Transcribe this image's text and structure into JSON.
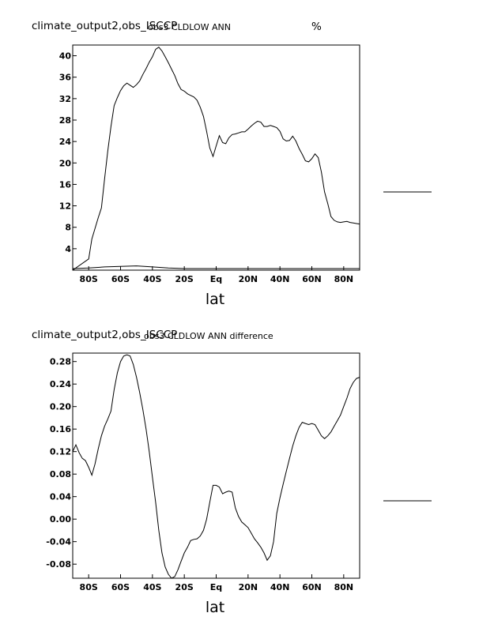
{
  "chart_data": [
    {
      "type": "line",
      "source_label": "climate_output2,obs_ISCCP",
      "title": "obs3 CLDLOW ANN",
      "units": "%",
      "xlabel": "lat",
      "ylabel": "",
      "xlim": [
        -90,
        90
      ],
      "ylim": [
        0,
        42
      ],
      "x_ticks": [
        {
          "value": -80,
          "label": "80S"
        },
        {
          "value": -60,
          "label": "60S"
        },
        {
          "value": -40,
          "label": "40S"
        },
        {
          "value": -20,
          "label": "20S"
        },
        {
          "value": 0,
          "label": "Eq"
        },
        {
          "value": 20,
          "label": "20N"
        },
        {
          "value": 40,
          "label": "40N"
        },
        {
          "value": 60,
          "label": "60N"
        },
        {
          "value": 80,
          "label": "80N"
        }
      ],
      "y_ticks": [
        {
          "value": 4,
          "label": "4"
        },
        {
          "value": 8,
          "label": "8"
        },
        {
          "value": 12,
          "label": "12"
        },
        {
          "value": 16,
          "label": "16"
        },
        {
          "value": 20,
          "label": "20"
        },
        {
          "value": 24,
          "label": "24"
        },
        {
          "value": 28,
          "label": "28"
        },
        {
          "value": 32,
          "label": "32"
        },
        {
          "value": 36,
          "label": "36"
        },
        {
          "value": 40,
          "label": "40"
        }
      ],
      "grid": false,
      "legend": "none",
      "series": [
        {
          "x": [
            -90,
            -80,
            -78,
            -74,
            -72,
            -70,
            -68,
            -66,
            -64,
            -62,
            -60,
            -58,
            -56,
            -54,
            -52,
            -50,
            -48,
            -46,
            -44,
            -42,
            -40,
            -38,
            -36,
            -34,
            -32,
            -30,
            -28,
            -26,
            -24,
            -22,
            -20,
            -18,
            -16,
            -14,
            -12,
            -10,
            -8,
            -6,
            -4,
            -2,
            0,
            2,
            4,
            6,
            8,
            10,
            12,
            14,
            16,
            18,
            20,
            22,
            24,
            26,
            28,
            30,
            32,
            34,
            36,
            38,
            40,
            42,
            44,
            46,
            48,
            50,
            52,
            54,
            56,
            58,
            60,
            62,
            64,
            66,
            68,
            70,
            72,
            74,
            76,
            78,
            80,
            82,
            84,
            86,
            88,
            90
          ],
          "y": [
            0,
            2.1,
            5.8,
            9.8,
            11.6,
            17,
            22.3,
            26.8,
            30.7,
            32.2,
            33.5,
            34.4,
            34.9,
            34.5,
            34.1,
            34.6,
            35.3,
            36.5,
            37.6,
            38.8,
            39.8,
            41.2,
            41.6,
            40.9,
            39.8,
            38.7,
            37.5,
            36.3,
            34.8,
            33.7,
            33.4,
            32.9,
            32.6,
            32.3,
            31.7,
            30.4,
            28.7,
            25.9,
            22.8,
            21.2,
            23.2,
            25.1,
            23.8,
            23.6,
            24.7,
            25.3,
            25.4,
            25.6,
            25.8,
            25.8,
            26.3,
            26.9,
            27.4,
            27.8,
            27.6,
            26.8,
            26.8,
            27.0,
            26.8,
            26.6,
            25.9,
            24.5,
            24.1,
            24.2,
            25.0,
            24.1,
            22.7,
            21.6,
            20.4,
            20.2,
            20.8,
            21.7,
            21.0,
            18.3,
            14.6,
            12.4,
            10.0,
            9.3,
            9.0,
            8.9,
            9.0,
            9.1,
            8.9,
            8.8,
            8.7,
            8.6
          ]
        },
        {
          "x": [
            -90,
            -80,
            -70,
            -60,
            -50,
            -40,
            -30,
            -20,
            -10,
            0,
            10,
            20,
            30,
            40,
            50,
            60,
            70,
            80,
            90
          ],
          "y": [
            0.3,
            0.4,
            0.6,
            0.7,
            0.8,
            0.6,
            0.4,
            0.3,
            0.3,
            0.3,
            0.3,
            0.3,
            0.3,
            0.3,
            0.3,
            0.3,
            0.3,
            0.3,
            0.3
          ]
        }
      ]
    },
    {
      "type": "line",
      "source_label": "climate_output2,obs_ISCCP",
      "title": "obs3 CLDLOW ANN difference",
      "xlabel": "lat",
      "ylabel": "",
      "xlim": [
        -90,
        90
      ],
      "ylim": [
        -0.105,
        0.295
      ],
      "x_ticks": [
        {
          "value": -80,
          "label": "80S"
        },
        {
          "value": -60,
          "label": "60S"
        },
        {
          "value": -40,
          "label": "40S"
        },
        {
          "value": -20,
          "label": "20S"
        },
        {
          "value": 0,
          "label": "Eq"
        },
        {
          "value": 20,
          "label": "20N"
        },
        {
          "value": 40,
          "label": "40N"
        },
        {
          "value": 60,
          "label": "60N"
        },
        {
          "value": 80,
          "label": "80N"
        }
      ],
      "y_ticks": [
        {
          "value": -0.08,
          "label": "-0.08"
        },
        {
          "value": -0.04,
          "label": "-0.04"
        },
        {
          "value": 0.0,
          "label": "0.00"
        },
        {
          "value": 0.04,
          "label": "0.04"
        },
        {
          "value": 0.08,
          "label": "0.08"
        },
        {
          "value": 0.12,
          "label": "0.12"
        },
        {
          "value": 0.16,
          "label": "0.16"
        },
        {
          "value": 0.2,
          "label": "0.20"
        },
        {
          "value": 0.24,
          "label": "0.24"
        },
        {
          "value": 0.28,
          "label": "0.28"
        }
      ],
      "grid": false,
      "legend": "none",
      "series": [
        {
          "x": [
            -90,
            -88,
            -86,
            -84,
            -82,
            -80,
            -78,
            -76,
            -74,
            -72,
            -70,
            -68,
            -66,
            -64,
            -62,
            -60,
            -58,
            -56,
            -54,
            -52,
            -50,
            -48,
            -46,
            -44,
            -42,
            -40,
            -38,
            -36,
            -34,
            -32,
            -30,
            -28,
            -26,
            -24,
            -22,
            -20,
            -18,
            -16,
            -14,
            -12,
            -10,
            -8,
            -6,
            -4,
            -2,
            0,
            2,
            4,
            6,
            8,
            10,
            12,
            14,
            16,
            18,
            20,
            22,
            24,
            26,
            28,
            30,
            32,
            34,
            36,
            38,
            40,
            42,
            44,
            46,
            48,
            50,
            52,
            54,
            56,
            58,
            60,
            62,
            64,
            66,
            68,
            70,
            72,
            74,
            76,
            78,
            80,
            82,
            84,
            86,
            88,
            90
          ],
          "y": [
            0.12,
            0.132,
            0.118,
            0.108,
            0.104,
            0.092,
            0.078,
            0.098,
            0.125,
            0.148,
            0.165,
            0.178,
            0.192,
            0.23,
            0.26,
            0.28,
            0.29,
            0.292,
            0.29,
            0.275,
            0.252,
            0.225,
            0.195,
            0.16,
            0.12,
            0.075,
            0.03,
            -0.02,
            -0.06,
            -0.085,
            -0.098,
            -0.105,
            -0.102,
            -0.09,
            -0.075,
            -0.06,
            -0.05,
            -0.038,
            -0.036,
            -0.035,
            -0.03,
            -0.02,
            0.0,
            0.03,
            0.06,
            0.06,
            0.057,
            0.045,
            0.048,
            0.05,
            0.048,
            0.02,
            0.005,
            -0.005,
            -0.01,
            -0.015,
            -0.025,
            -0.035,
            -0.042,
            -0.05,
            -0.06,
            -0.073,
            -0.065,
            -0.04,
            0.01,
            0.038,
            0.062,
            0.085,
            0.108,
            0.13,
            0.148,
            0.163,
            0.172,
            0.17,
            0.168,
            0.17,
            0.168,
            0.158,
            0.148,
            0.143,
            0.148,
            0.155,
            0.165,
            0.175,
            0.185,
            0.2,
            0.215,
            0.232,
            0.243,
            0.25,
            0.252
          ]
        }
      ]
    }
  ]
}
